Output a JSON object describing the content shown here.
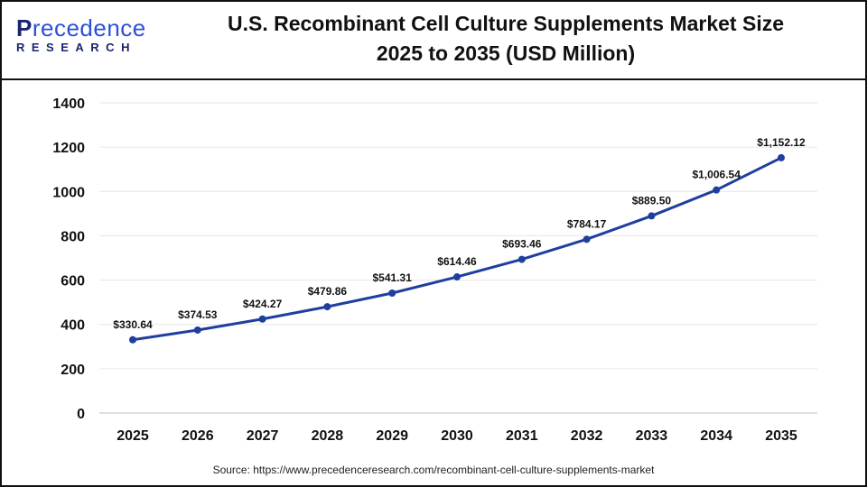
{
  "logo": {
    "line1_first": "P",
    "line1_rest": "recedence",
    "line2": "RESEARCH"
  },
  "title": {
    "line1": "U.S. Recombinant Cell Culture Supplements Market Size",
    "line2": "2025 to 2035 (USD Million)"
  },
  "source": "Source: https://www.precedenceresearch.com/recombinant-cell-culture-supplements-market",
  "colors": {
    "line": "#1f3f9e",
    "grid": "#e6e6e6"
  },
  "chart_data": {
    "type": "line",
    "categories": [
      "2025",
      "2026",
      "2027",
      "2028",
      "2029",
      "2030",
      "2031",
      "2032",
      "2033",
      "2034",
      "2035"
    ],
    "values": [
      330.64,
      374.53,
      424.27,
      479.86,
      541.31,
      614.46,
      693.46,
      784.17,
      889.5,
      1006.54,
      1152.12
    ],
    "data_labels": [
      "$330.64",
      "$374.53",
      "$424.27",
      "$479.86",
      "$541.31",
      "$614.46",
      "$693.46",
      "$784.17",
      "$889.50",
      "$1,006.54",
      "$1,152.12"
    ],
    "ylim": [
      0,
      1400
    ],
    "yticks": [
      "0",
      "200",
      "400",
      "600",
      "800",
      "1000",
      "1200",
      "1400"
    ],
    "grid": true,
    "legend": "none"
  }
}
